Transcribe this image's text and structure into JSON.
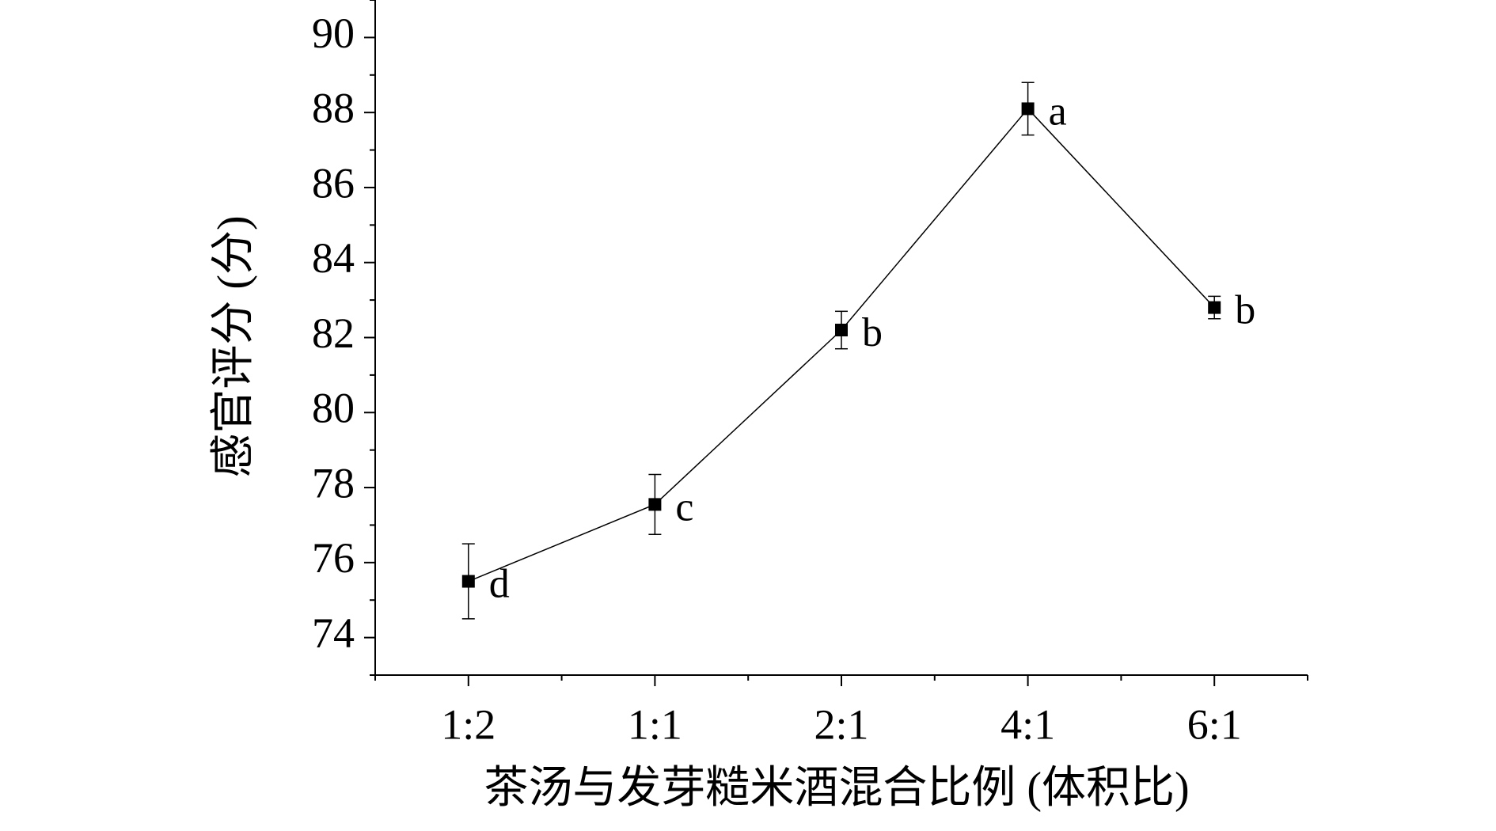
{
  "chart_data": {
    "type": "line",
    "x_label": "茶汤与发芽糙米酒混合比例 (体积比)",
    "y_label": "感官评分 (分)",
    "categories": [
      "1:2",
      "1:1",
      "2:1",
      "4:1",
      "6:1"
    ],
    "series": [
      {
        "color": "#000000",
        "values": [
          75.5,
          77.55,
          82.2,
          88.1,
          82.8
        ],
        "errors": [
          1.0,
          0.8,
          0.5,
          0.7,
          0.3
        ],
        "annotations": [
          "d",
          "c",
          "b",
          "a",
          "b"
        ]
      }
    ],
    "ylim": [
      73,
      91
    ],
    "yticks": [
      74,
      76,
      78,
      80,
      82,
      84,
      86,
      88,
      90
    ],
    "yminorticks": [
      73,
      75,
      77,
      79,
      81,
      83,
      85,
      87,
      89,
      91
    ]
  }
}
